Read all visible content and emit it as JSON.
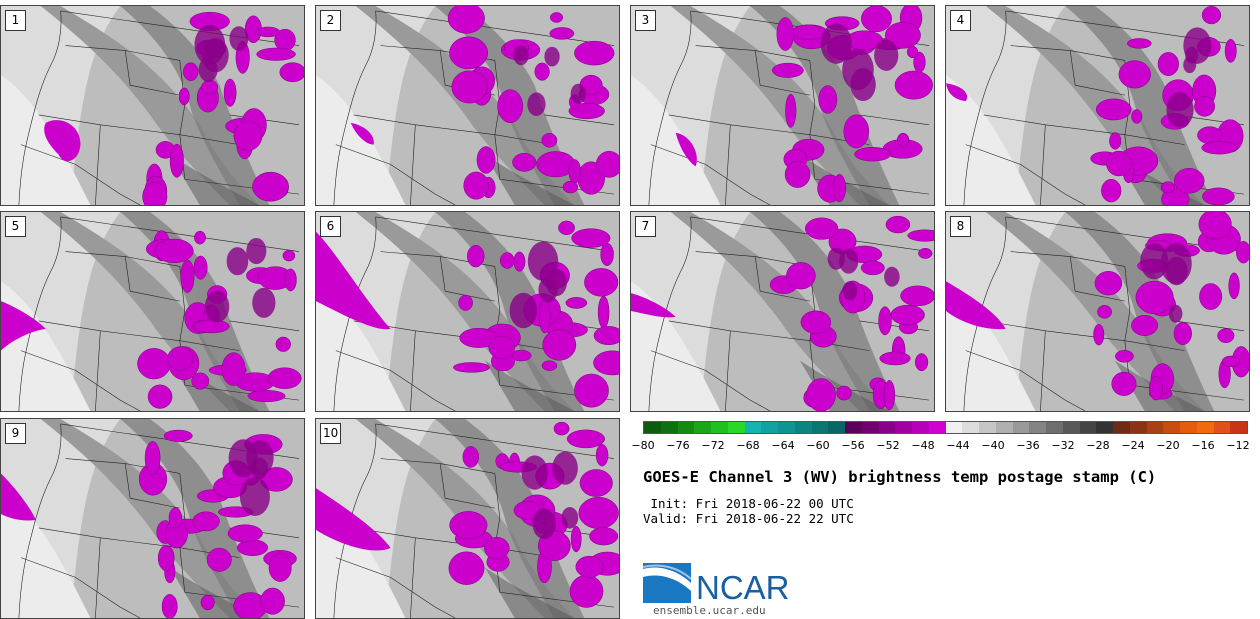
{
  "panels": [
    {
      "label": "1"
    },
    {
      "label": "2"
    },
    {
      "label": "3"
    },
    {
      "label": "4"
    },
    {
      "label": "5"
    },
    {
      "label": "6"
    },
    {
      "label": "7"
    },
    {
      "label": "8"
    },
    {
      "label": "9"
    },
    {
      "label": "10"
    }
  ],
  "colorbar": {
    "colors": [
      "#0b5d0b",
      "#0e700e",
      "#148a14",
      "#1aa51a",
      "#20c020",
      "#2ad82a",
      "#16b3b3",
      "#12a2a2",
      "#109393",
      "#0d8484",
      "#0b7575",
      "#096666",
      "#5a005a",
      "#70006f",
      "#880088",
      "#a000a0",
      "#b800b8",
      "#d000d0",
      "#f0f0f0",
      "#dcdcdc",
      "#c6c6c6",
      "#b0b0b0",
      "#9a9a9a",
      "#848484",
      "#6e6e6e",
      "#585858",
      "#444444",
      "#333333",
      "#6e2a12",
      "#8a3414",
      "#a84216",
      "#c64e12",
      "#e25d0c",
      "#f06a0e",
      "#e0501a",
      "#c83418"
    ],
    "tick_labels": [
      "−80",
      "−76",
      "−72",
      "−68",
      "−64",
      "−60",
      "−56",
      "−52",
      "−48",
      "−44",
      "−40",
      "−36",
      "−32",
      "−28",
      "−24",
      "−20",
      "−16",
      "−12"
    ]
  },
  "title": "GOES-E Channel 3 (WV) brightness temp postage stamp (C)",
  "init_text": " Init: Fri 2018-06-22 00 UTC",
  "valid_text": "Valid: Fri 2018-06-22 22 UTC",
  "logo_text": "NCAR",
  "website": "ensemble.ucar.edu"
}
